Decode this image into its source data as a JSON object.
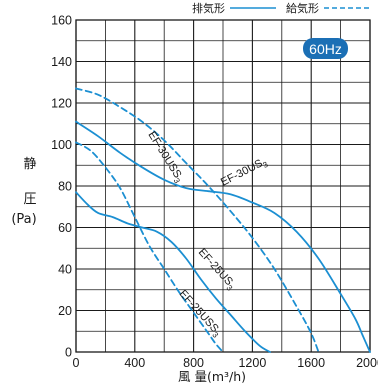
{
  "chart_data": {
    "type": "line",
    "badge": "60Hz",
    "ylabel": [
      "静",
      "圧",
      "(Pa)"
    ],
    "xlabel": "風 量(m³/h)",
    "xlim": [
      0,
      2000
    ],
    "ylim": [
      0,
      160
    ],
    "x_ticks": [
      0,
      400,
      800,
      1200,
      1600,
      2000
    ],
    "y_ticks": [
      0,
      20,
      40,
      60,
      80,
      100,
      120,
      140,
      160
    ],
    "x_tick_labels": [
      "0",
      "400",
      "800",
      "1200",
      "1600",
      "2000"
    ],
    "y_tick_labels": [
      "0",
      "20",
      "40",
      "60",
      "80",
      "100",
      "120",
      "140",
      "160"
    ],
    "x_minor_step": 200,
    "y_minor_step": 10,
    "grid": true,
    "legend": [
      {
        "label": "排気形",
        "style": "solid"
      },
      {
        "label": "給気形",
        "style": "dashed"
      }
    ],
    "colors": {
      "series": "#1b8fd2",
      "grid": "#1a1a1a",
      "badge": "#1b6fb5"
    },
    "series": [
      {
        "name": "EF-30US₃",
        "label_text": "EF-30US",
        "label_sub": "3",
        "style": "solid",
        "label_at": [
          1000,
          80
        ],
        "label_angle": -27,
        "x": [
          0,
          150,
          300,
          450,
          600,
          750,
          900,
          1050,
          1200,
          1350,
          1500,
          1650,
          1800,
          1900,
          1950,
          2000
        ],
        "y": [
          111,
          104,
          96,
          89,
          83,
          79,
          77.5,
          76,
          72,
          67,
          58,
          45,
          28,
          16,
          8,
          0
        ]
      },
      {
        "name": "EF-30USS₃",
        "label_text": "EF-30USS",
        "label_sub": "3",
        "style": "dashed",
        "label_at": [
          490,
          105
        ],
        "label_angle": 58,
        "x": [
          0,
          150,
          300,
          450,
          600,
          750,
          900,
          1050,
          1200,
          1350,
          1500,
          1600,
          1650
        ],
        "y": [
          127,
          124,
          118,
          111,
          102,
          91,
          80,
          68,
          55,
          40,
          22,
          9,
          0
        ]
      },
      {
        "name": "EF-25US₃",
        "label_text": "EF-25US",
        "label_sub": "3",
        "style": "solid",
        "label_at": [
          830,
          48
        ],
        "label_angle": 48,
        "x": [
          0,
          80,
          150,
          250,
          350,
          450,
          550,
          650,
          750,
          850,
          950,
          1050,
          1150,
          1250,
          1320
        ],
        "y": [
          77,
          71,
          67,
          65,
          62,
          60,
          58,
          53,
          45,
          35,
          26,
          18,
          10,
          3,
          0
        ]
      },
      {
        "name": "EF-25USS₃",
        "label_text": "EF-25USS",
        "label_sub": "3",
        "style": "dashed",
        "label_at": [
          700,
          28
        ],
        "label_angle": 48,
        "x": [
          0,
          100,
          200,
          300,
          400,
          500,
          600,
          700,
          800,
          900,
          950,
          1000
        ],
        "y": [
          101,
          97,
          89,
          79,
          65,
          51,
          40,
          29,
          19,
          9,
          4,
          0
        ]
      }
    ]
  }
}
